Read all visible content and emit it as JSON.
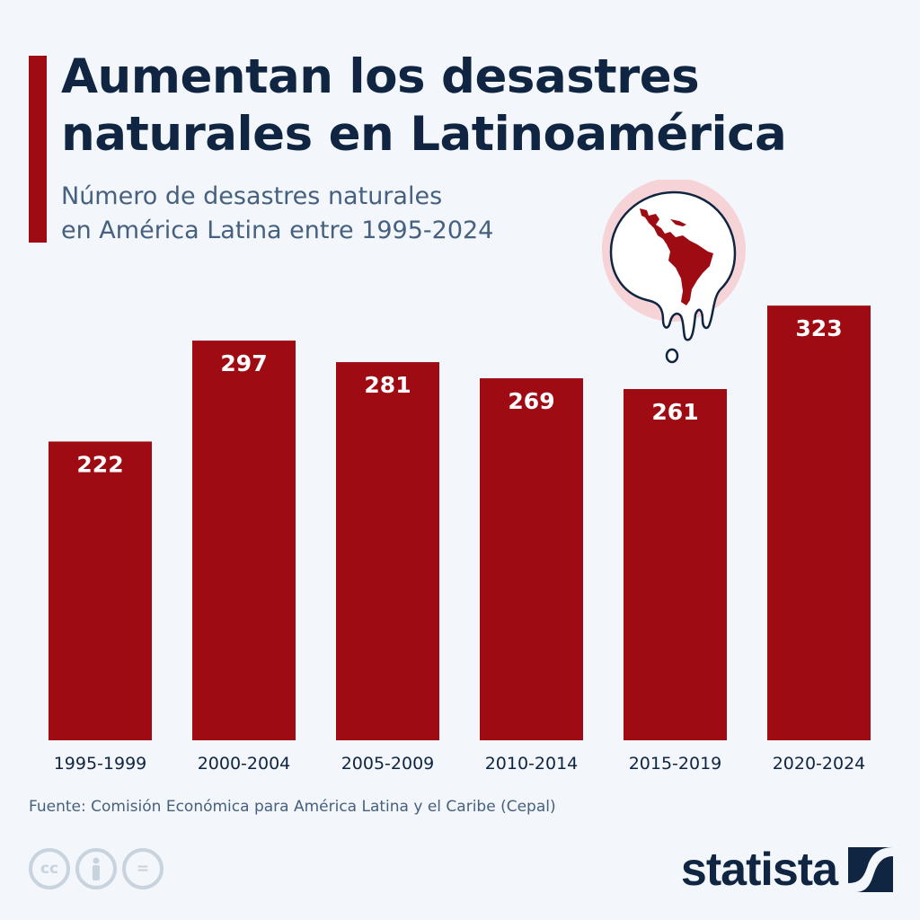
{
  "header": {
    "title_line1": "Aumentan los desastres",
    "title_line2": "naturales en Latinoamérica",
    "subtitle_line1": "Número de desastres naturales",
    "subtitle_line2": "en América Latina entre 1995-2024"
  },
  "colors": {
    "bar": "#9f0b13",
    "title": "#0f2542",
    "subtitle": "#46607f",
    "background": "#f3f6fa",
    "bar_label": "#ffffff"
  },
  "chart_data": {
    "type": "bar",
    "title": "Aumentan los desastres naturales en Latinoamérica",
    "subtitle": "Número de desastres naturales en América Latina entre 1995-2024",
    "categories": [
      "1995-1999",
      "2000-2004",
      "2005-2009",
      "2010-2014",
      "2015-2019",
      "2020-2024"
    ],
    "values": [
      222,
      297,
      281,
      269,
      261,
      323
    ],
    "xlabel": "",
    "ylabel": "",
    "ylim": [
      0,
      323
    ],
    "grid": false,
    "legend": "none",
    "data_labels": true
  },
  "footer": {
    "source": "Fuente: Comisión Económica para América Latina y el Caribe (Cepal)",
    "license_icons": [
      "cc-icon",
      "attribution-icon",
      "no-derivatives-icon"
    ],
    "cc_label": "cc",
    "eq_label": "=",
    "logo_text": "statista"
  }
}
